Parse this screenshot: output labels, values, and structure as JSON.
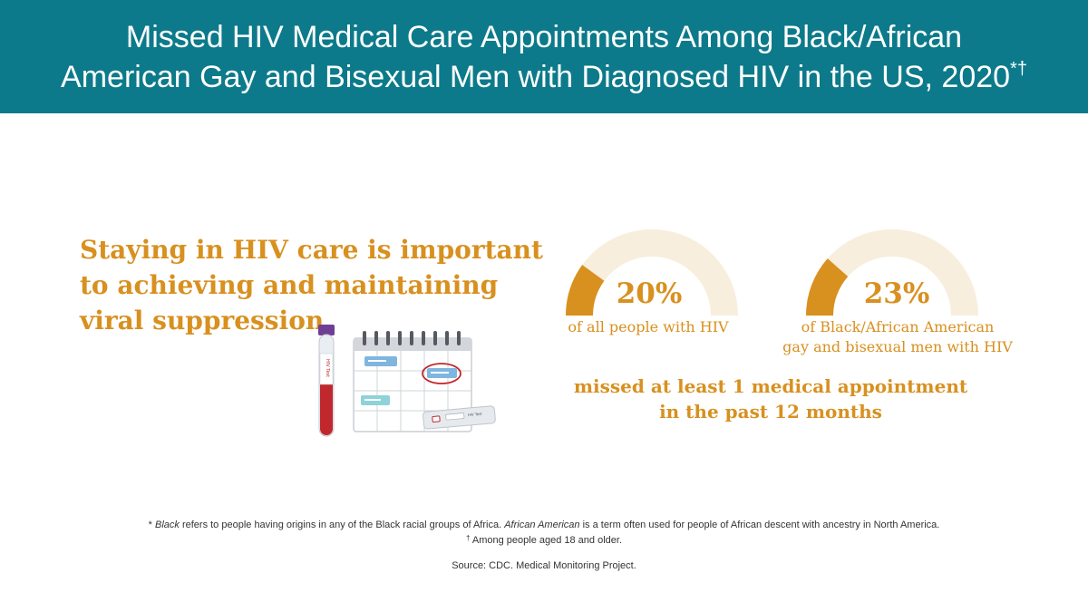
{
  "header": {
    "title_line1": "Missed HIV Medical Care Appointments Among Black/African",
    "title_line2": "American Gay and Bisexual Men with Diagnosed HIV in the US, 2020",
    "title_marks": "*†"
  },
  "lead": {
    "line1": "Staying in HIV care is important",
    "line2": "to achieving and maintaining",
    "line3": "viral suppression."
  },
  "illustration": {
    "icons": [
      "blood-test-tube-icon",
      "calendar-icon",
      "hiv-rapid-test-icon"
    ],
    "tube_label": "HIV Test",
    "rapid_test_label": "HIV Test"
  },
  "chart_data": {
    "type": "gauge",
    "max": 100,
    "unit": "%",
    "items": [
      {
        "value": 20,
        "value_label": "20%",
        "label_lines": [
          "of all people with HIV"
        ]
      },
      {
        "value": 23,
        "value_label": "23%",
        "label_lines": [
          "of Black/African American",
          "gay and bisexual men with HIV"
        ]
      }
    ],
    "fill_color": "#d8901f",
    "track_color": "#f8eedd"
  },
  "summary": {
    "line1": "missed at least 1 medical appointment",
    "line2": "in the past 12 months"
  },
  "footnotes": {
    "fn1_mark": "* ",
    "fn1_term1": "Black",
    "fn1_text1": " refers to people having origins in any of the Black racial groups of Africa. ",
    "fn1_term2": "African American",
    "fn1_text2": " is a term often used for people of African descent with ancestry in North America.",
    "fn2_mark": "†",
    "fn2_text": " Among people aged 18 and older.",
    "source": "Source: CDC. Medical Monitoring Project."
  },
  "colors": {
    "header_bg": "#0c7a8a",
    "accent": "#d8901f"
  }
}
